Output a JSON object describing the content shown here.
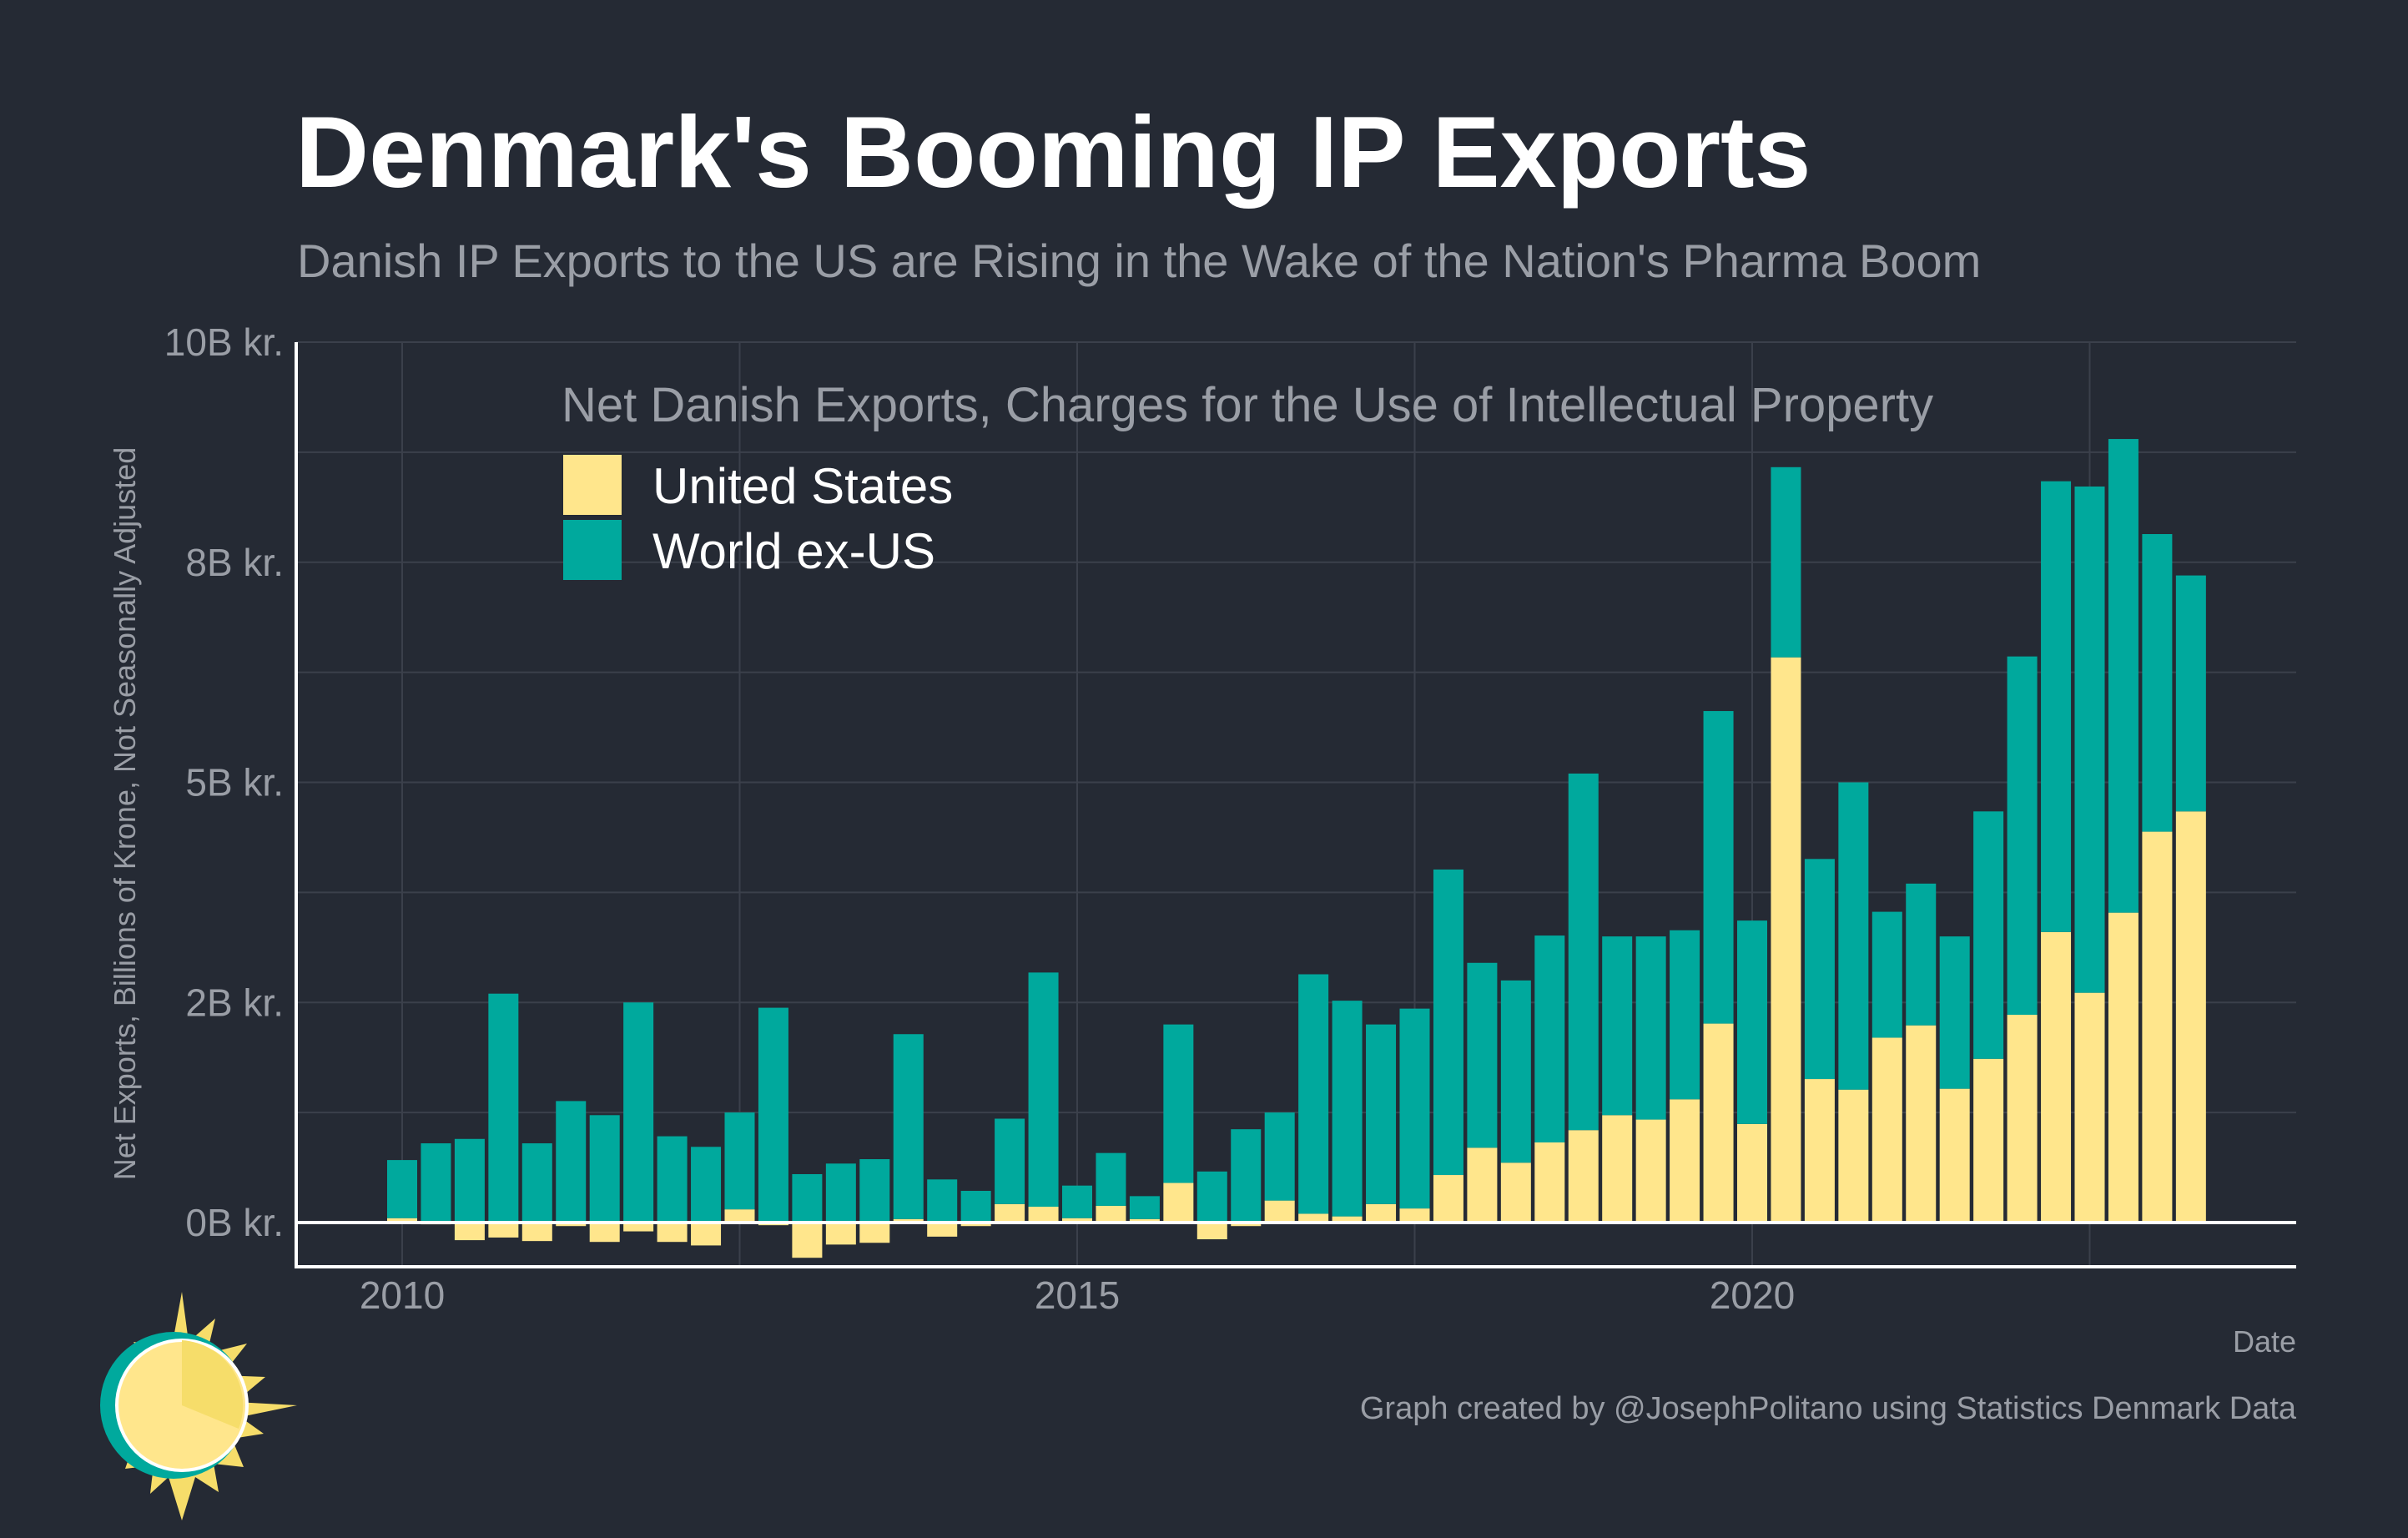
{
  "header": {
    "title": "Denmark's Booming IP Exports",
    "subtitle": "Danish IP Exports to the US are Rising in the Wake of the Nation's Pharma Boom"
  },
  "footer": {
    "x_axis_title": "Date",
    "caption": "Graph created by @JosephPolitano using Statistics Denmark Data"
  },
  "colors": {
    "background": "#252a34",
    "us": "#ffe68c",
    "world_ex_us": "#00a99d",
    "logo_ring": "#00a99d",
    "logo_sun": "#ffe68c",
    "logo_rays": "#f6dd6a"
  },
  "chart_data": {
    "type": "bar",
    "stacked": true,
    "title": "Net Danish Exports, Charges for the Use of Intellectual Property",
    "xlabel": "Date",
    "ylabel": "Net Exports, Billions of Krone, Not Seasonally Adjusted",
    "ylim": [
      -0.5,
      10
    ],
    "xlim": [
      2009.45,
      2024.25
    ],
    "yticks": [
      {
        "value": 0,
        "label": "0B kr."
      },
      {
        "value": 2.5,
        "label": "2B kr."
      },
      {
        "value": 5,
        "label": "5B kr."
      },
      {
        "value": 7.5,
        "label": "8B kr."
      },
      {
        "value": 10,
        "label": "10B kr."
      }
    ],
    "xticks": [
      {
        "value": 2010,
        "label": "2010"
      },
      {
        "value": 2015,
        "label": "2015"
      },
      {
        "value": 2020,
        "label": "2020"
      }
    ],
    "legend": {
      "title": "Net Danish Exports, Charges for the Use of Intellectual Property",
      "position": "top-left"
    },
    "period_start": 2010,
    "period_step": 0.25,
    "categories": [
      "2010 Q1",
      "2010 Q2",
      "2010 Q3",
      "2010 Q4",
      "2011 Q1",
      "2011 Q2",
      "2011 Q3",
      "2011 Q4",
      "2012 Q1",
      "2012 Q2",
      "2012 Q3",
      "2012 Q4",
      "2013 Q1",
      "2013 Q2",
      "2013 Q3",
      "2013 Q4",
      "2014 Q1",
      "2014 Q2",
      "2014 Q3",
      "2014 Q4",
      "2015 Q1",
      "2015 Q2",
      "2015 Q3",
      "2015 Q4",
      "2016 Q1",
      "2016 Q2",
      "2016 Q3",
      "2016 Q4",
      "2017 Q1",
      "2017 Q2",
      "2017 Q3",
      "2017 Q4",
      "2018 Q1",
      "2018 Q2",
      "2018 Q3",
      "2018 Q4",
      "2019 Q1",
      "2019 Q2",
      "2019 Q3",
      "2019 Q4",
      "2020 Q1",
      "2020 Q2",
      "2020 Q3",
      "2020 Q4",
      "2021 Q1",
      "2021 Q2",
      "2021 Q3",
      "2021 Q4",
      "2022 Q1",
      "2022 Q2",
      "2022 Q3",
      "2022 Q4",
      "2023 Q1",
      "2023 Q2"
    ],
    "series": [
      {
        "name": "United States",
        "values": [
          0.05,
          -0.02,
          -0.2,
          -0.17,
          -0.21,
          -0.04,
          -0.22,
          -0.1,
          -0.22,
          -0.26,
          0.15,
          -0.03,
          -0.4,
          -0.25,
          -0.23,
          0.04,
          -0.16,
          -0.04,
          0.21,
          0.18,
          0.05,
          0.19,
          0.04,
          0.45,
          -0.19,
          -0.04,
          0.25,
          0.1,
          0.07,
          0.21,
          0.16,
          0.54,
          0.85,
          0.68,
          0.91,
          1.05,
          1.22,
          1.17,
          1.4,
          2.26,
          1.12,
          6.42,
          1.63,
          1.51,
          2.1,
          2.24,
          1.52,
          1.86,
          2.36,
          3.3,
          2.61,
          3.52,
          4.44,
          4.67
        ]
      },
      {
        "name": "World ex-US",
        "values": [
          0.66,
          0.9,
          0.95,
          2.6,
          0.9,
          1.38,
          1.22,
          2.5,
          0.98,
          0.86,
          1.1,
          2.44,
          0.55,
          0.67,
          0.72,
          2.1,
          0.49,
          0.36,
          0.97,
          2.66,
          0.37,
          0.6,
          0.26,
          1.8,
          0.58,
          1.06,
          1.0,
          2.72,
          2.45,
          2.04,
          2.27,
          3.47,
          2.1,
          2.07,
          2.35,
          4.05,
          2.03,
          2.08,
          1.92,
          3.55,
          2.31,
          2.16,
          2.5,
          3.49,
          1.43,
          1.61,
          1.73,
          2.81,
          4.07,
          5.12,
          5.75,
          5.38,
          3.38,
          2.68
        ]
      }
    ]
  }
}
